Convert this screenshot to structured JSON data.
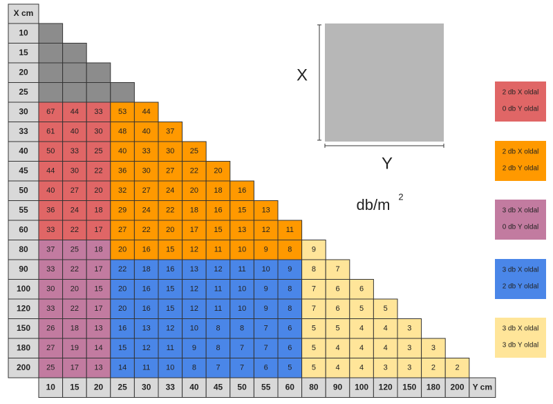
{
  "table": {
    "corner": "X cm",
    "column_headers": [
      "10",
      "15",
      "20",
      "25",
      "30",
      "33",
      "40",
      "45",
      "50",
      "55",
      "60",
      "80",
      "90",
      "100",
      "120",
      "150",
      "180",
      "200",
      "Y cm"
    ],
    "rows": [
      {
        "label": "10",
        "segments": [
          {
            "color": "#8c8c8c",
            "cells": [
              null
            ]
          }
        ]
      },
      {
        "label": "15",
        "segments": [
          {
            "color": "#8c8c8c",
            "cells": [
              null,
              null
            ]
          }
        ]
      },
      {
        "label": "20",
        "segments": [
          {
            "color": "#8c8c8c",
            "cells": [
              null,
              null,
              null
            ]
          }
        ]
      },
      {
        "label": "25",
        "segments": [
          {
            "color": "#8c8c8c",
            "cells": [
              null,
              null,
              null,
              null
            ]
          }
        ]
      },
      {
        "label": "30",
        "segments": [
          {
            "color": "#e06666",
            "cells": [
              67,
              44,
              33
            ]
          },
          {
            "color": "#ff9900",
            "cells": [
              53,
              44
            ]
          }
        ]
      },
      {
        "label": "33",
        "segments": [
          {
            "color": "#e06666",
            "cells": [
              61,
              40,
              30
            ]
          },
          {
            "color": "#ff9900",
            "cells": [
              48,
              40,
              37
            ]
          }
        ]
      },
      {
        "label": "40",
        "segments": [
          {
            "color": "#e06666",
            "cells": [
              50,
              33,
              25
            ]
          },
          {
            "color": "#ff9900",
            "cells": [
              40,
              33,
              30,
              25
            ]
          }
        ]
      },
      {
        "label": "45",
        "segments": [
          {
            "color": "#e06666",
            "cells": [
              44,
              30,
              22
            ]
          },
          {
            "color": "#ff9900",
            "cells": [
              36,
              30,
              27,
              22,
              20
            ]
          }
        ]
      },
      {
        "label": "50",
        "segments": [
          {
            "color": "#e06666",
            "cells": [
              40,
              27,
              20
            ]
          },
          {
            "color": "#ff9900",
            "cells": [
              32,
              27,
              24,
              20,
              18,
              16
            ]
          }
        ]
      },
      {
        "label": "55",
        "segments": [
          {
            "color": "#e06666",
            "cells": [
              36,
              24,
              18
            ]
          },
          {
            "color": "#ff9900",
            "cells": [
              29,
              24,
              22,
              18,
              16,
              15,
              13
            ]
          }
        ]
      },
      {
        "label": "60",
        "segments": [
          {
            "color": "#e06666",
            "cells": [
              33,
              22,
              17
            ]
          },
          {
            "color": "#ff9900",
            "cells": [
              27,
              22,
              20,
              17,
              15,
              13,
              12,
              11
            ]
          }
        ]
      },
      {
        "label": "80",
        "segments": [
          {
            "color": "#c27ba0",
            "cells": [
              37,
              25,
              18
            ]
          },
          {
            "color": "#ff9900",
            "cells": [
              20,
              16,
              15,
              12,
              11,
              10,
              9,
              8
            ]
          },
          {
            "color": "#ffe599",
            "cells": [
              9
            ]
          }
        ]
      },
      {
        "label": "90",
        "segments": [
          {
            "color": "#c27ba0",
            "cells": [
              33,
              22,
              17
            ]
          },
          {
            "color": "#4a86e8",
            "cells": [
              22,
              18,
              16,
              13,
              12,
              11,
              10,
              9
            ]
          },
          {
            "color": "#ffe599",
            "cells": [
              8,
              7
            ]
          }
        ]
      },
      {
        "label": "100",
        "segments": [
          {
            "color": "#c27ba0",
            "cells": [
              30,
              20,
              15
            ]
          },
          {
            "color": "#4a86e8",
            "cells": [
              20,
              16,
              15,
              12,
              11,
              10,
              9,
              8
            ]
          },
          {
            "color": "#ffe599",
            "cells": [
              7,
              6,
              6
            ]
          }
        ]
      },
      {
        "label": "120",
        "segments": [
          {
            "color": "#c27ba0",
            "cells": [
              33,
              22,
              17
            ]
          },
          {
            "color": "#4a86e8",
            "cells": [
              20,
              16,
              15,
              12,
              11,
              10,
              9,
              8
            ]
          },
          {
            "color": "#ffe599",
            "cells": [
              7,
              6,
              5,
              5
            ]
          }
        ]
      },
      {
        "label": "150",
        "segments": [
          {
            "color": "#c27ba0",
            "cells": [
              26,
              18,
              13
            ]
          },
          {
            "color": "#4a86e8",
            "cells": [
              16,
              13,
              12,
              10,
              8,
              8,
              7,
              6
            ]
          },
          {
            "color": "#ffe599",
            "cells": [
              5,
              5,
              4,
              4,
              3
            ]
          }
        ]
      },
      {
        "label": "180",
        "segments": [
          {
            "color": "#c27ba0",
            "cells": [
              27,
              19,
              14
            ]
          },
          {
            "color": "#4a86e8",
            "cells": [
              15,
              12,
              11,
              9,
              8,
              7,
              7,
              6
            ]
          },
          {
            "color": "#ffe599",
            "cells": [
              5,
              4,
              4,
              4,
              3,
              3
            ]
          }
        ]
      },
      {
        "label": "200",
        "segments": [
          {
            "color": "#c27ba0",
            "cells": [
              25,
              17,
              13
            ]
          },
          {
            "color": "#4a86e8",
            "cells": [
              14,
              11,
              10,
              8,
              7,
              7,
              6,
              5
            ]
          },
          {
            "color": "#ffe599",
            "cells": [
              5,
              4,
              4,
              3,
              3,
              2,
              2
            ]
          }
        ]
      }
    ]
  },
  "diagram": {
    "x_label": "X",
    "y_label": "Y",
    "unit": "db/m",
    "unit_exponent": "2"
  },
  "legend": [
    {
      "color": "#e06666",
      "lines": [
        "2 db X oldal",
        "0 db Y oldal"
      ]
    },
    {
      "color": "#ff9900",
      "lines": [
        "2 db X oldal",
        "2 db Y oldal"
      ]
    },
    {
      "color": "#c27ba0",
      "lines": [
        "3 db X oldal",
        "0 db Y oldal"
      ]
    },
    {
      "color": "#4a86e8",
      "lines": [
        "3 db X oldal",
        "2 db Y oldal"
      ]
    },
    {
      "color": "#ffe599",
      "lines": [
        "3 db X oldal",
        "3 db Y oldal"
      ]
    }
  ]
}
